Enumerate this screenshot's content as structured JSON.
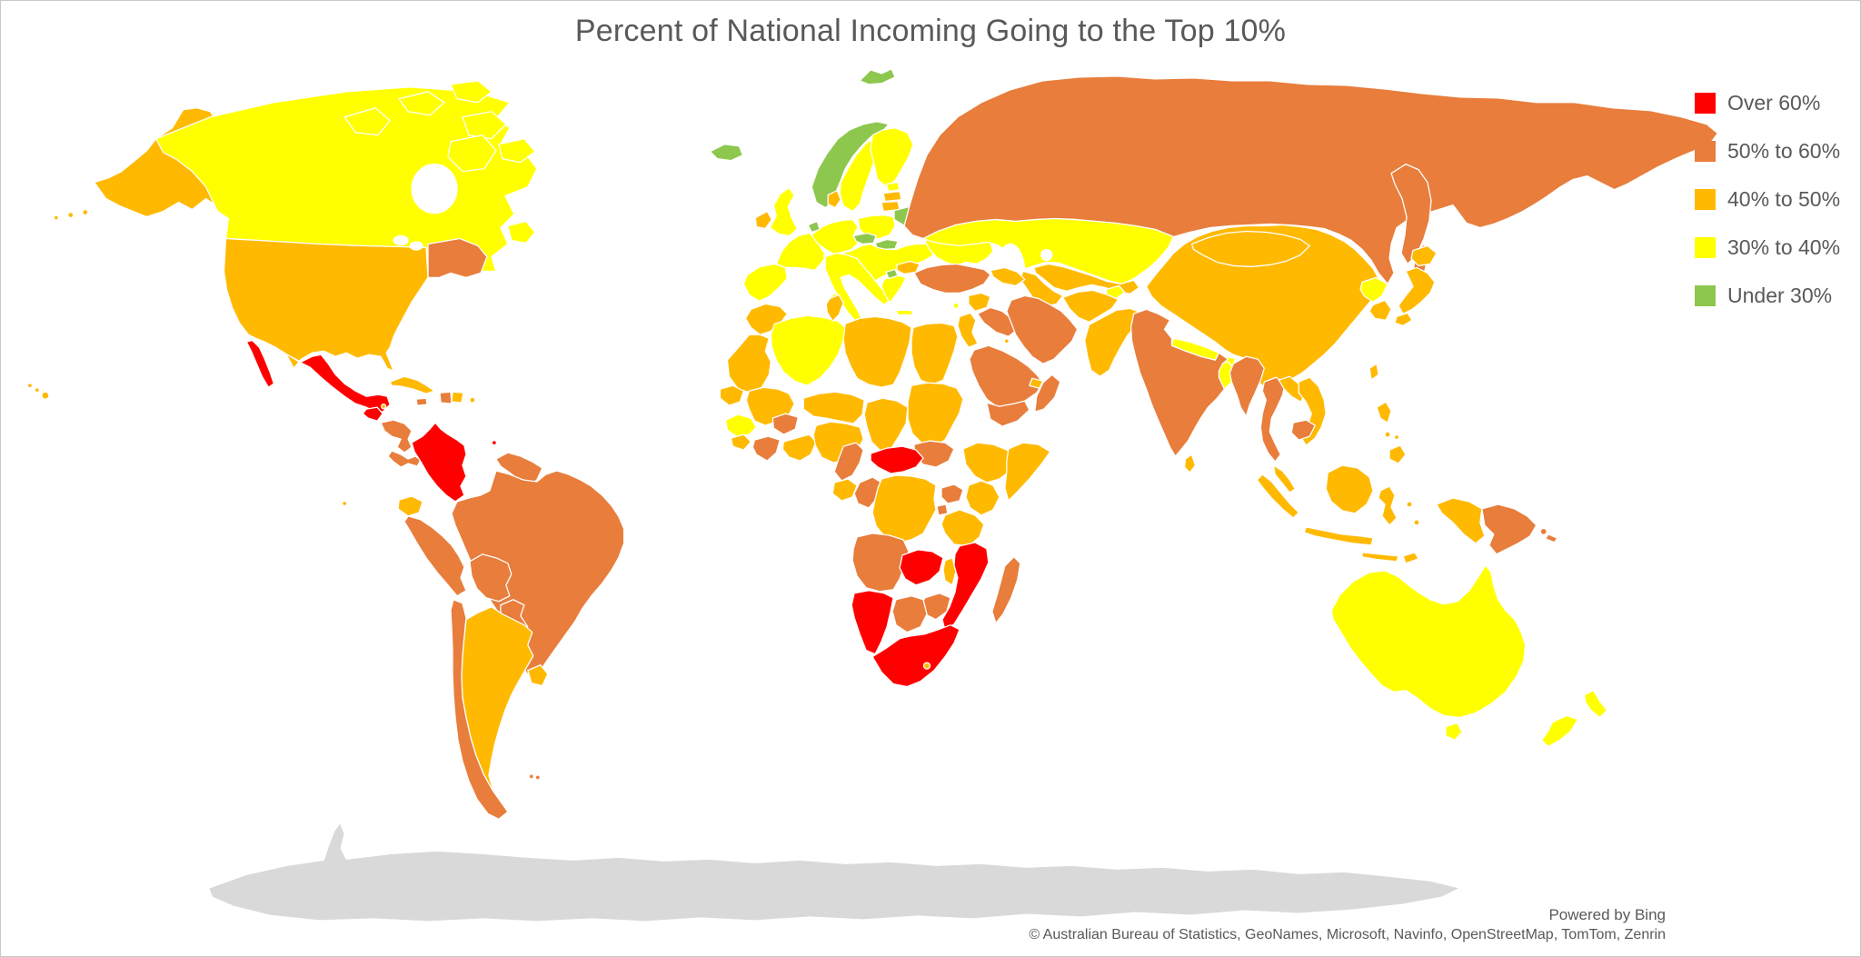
{
  "title": "Percent of National Incoming Going to the Top 10%",
  "legend": {
    "items": [
      {
        "key": "over60",
        "label": "Over 60%",
        "color": "#FE0000"
      },
      {
        "key": "50to60",
        "label": "50% to 60%",
        "color": "#E87D3C"
      },
      {
        "key": "40to50",
        "label": "40% to 50%",
        "color": "#FFB900"
      },
      {
        "key": "30to40",
        "label": "30% to 40%",
        "color": "#FFFF00"
      },
      {
        "key": "under30",
        "label": "Under 30%",
        "color": "#8DC74E"
      }
    ]
  },
  "attribution": {
    "powered_by": "Powered by Bing",
    "copyright": "© Australian Bureau of Statistics, GeoNames, Microsoft, Navinfo, OpenStreetMap, TomTom, Zenrin"
  },
  "map": {
    "ocean_color": "#FFFFFF",
    "no_data_color": "#FFFFFF",
    "antarctica_color": "#D9D9D9",
    "border_color": "#FFFFFF",
    "regions": {
      "canada": "30to40",
      "canada-arctic-islands": "30to40",
      "newfoundland": "30to40",
      "canadian-maritimes": "50to60",
      "alaska": "40to50",
      "usa": "40to50",
      "hawaii": "40to50",
      "mexico": "over60",
      "guatemala": "over60",
      "belize": "40to50",
      "honduras-nicaragua": "50to60",
      "costa-rica-panama": "50to60",
      "cuba": "40to50",
      "jamaica": "50to60",
      "haiti": "50to60",
      "dominican-republic": "40to50",
      "puerto-rico": "40to50",
      "trinidad": "over60",
      "colombia": "over60",
      "ecuador": "40to50",
      "galapagos": "40to50",
      "guianas": "50to60",
      "peru": "50to60",
      "brazil": "50to60",
      "bolivia": "50to60",
      "paraguay": "50to60",
      "chile": "50to60",
      "argentina": "40to50",
      "uruguay": "40to50",
      "falkland-islands": "50to60",
      "iceland": "under30",
      "svalbard": "under30",
      "norway": "under30",
      "sweden": "30to40",
      "finland": "30to40",
      "denmark": "40to50",
      "estonia": "30to40",
      "latvia": "40to50",
      "lithuania": "40to50",
      "belarus": "under30",
      "uk": "30to40",
      "ireland": "40to50",
      "iberia": "30to40",
      "france": "30to40",
      "germany": "30to40",
      "netherlands": "under30",
      "poland": "30to40",
      "czechia": "under30",
      "slovakia": "under30",
      "italy": "30to40",
      "alpine-balkans": "30to40",
      "greece": "30to40",
      "crete": "30to40",
      "cyprus": "30to40",
      "north-macedonia": "under30",
      "bulgaria": "40to50",
      "ukraine": "30to40",
      "russia": "50to60",
      "kamchatka": "50to60",
      "sakhalin": "50to60",
      "kazakhstan": "30to40",
      "uzbekistan-kyrgyzstan": "40to50",
      "tajikistan": "30to40",
      "turkmenistan": "40to50",
      "caucasus": "40to50",
      "turkey": "50to60",
      "syria": "40to50",
      "iraq": "50to60",
      "iran": "50to60",
      "israel-jordan": "40to50",
      "saudi-arabia": "50to60",
      "yemen": "50to60",
      "oman": "50to60",
      "uae": "40to50",
      "kuwait": "40to50",
      "morocco": "40to50",
      "mauritania": "40to50",
      "algeria": "30to40",
      "tunisia": "40to50",
      "libya": "40to50",
      "egypt": "40to50",
      "senegal": "40to50",
      "mali": "40to50",
      "guinea": "30to40",
      "sierra-leone-liberia": "40to50",
      "cote-divoire": "50to60",
      "burkina-faso": "50to60",
      "ghana-togo-benin": "40to50",
      "nigeria": "40to50",
      "niger": "40to50",
      "chad": "40to50",
      "sudan": "40to50",
      "ethiopia": "40to50",
      "somalia": "40to50",
      "kenya": "40to50",
      "uganda": "50to60",
      "rwanda-burundi": "50to60",
      "tanzania": "40to50",
      "south-sudan": "50to60",
      "central-african-republic": "over60",
      "cameroon": "50to60",
      "gabon": "40to50",
      "congo": "50to60",
      "drc": "40to50",
      "angola": "50to60",
      "zambia": "over60",
      "malawi": "40to50",
      "mozambique": "over60",
      "zimbabwe": "50to60",
      "botswana": "50to60",
      "namibia": "over60",
      "south-africa": "over60",
      "lesotho": "40to50",
      "madagascar": "50to60",
      "china": "40to50",
      "mongolia": "40to50",
      "hainan": "40to50",
      "taiwan": "40to50",
      "nepal": "30to40",
      "bhutan": "30to40",
      "bangladesh": "30to40",
      "india": "50to60",
      "sri-lanka": "40to50",
      "myanmar": "50to60",
      "thailand": "50to60",
      "laos": "40to50",
      "vietnam": "40to50",
      "cambodia": "50to60",
      "malaysia": "40to50",
      "indonesia": "40to50",
      "philippines": "40to50",
      "japan": "40to50",
      "north-korea": "30to40",
      "south-korea": "40to50",
      "afghanistan": "40to50",
      "pakistan": "40to50",
      "papua-new-guinea": "50to60",
      "new-caledonia": "50to60",
      "australia": "30to40",
      "new-zealand": "30to40",
      "antarctica": "antarctica"
    }
  }
}
